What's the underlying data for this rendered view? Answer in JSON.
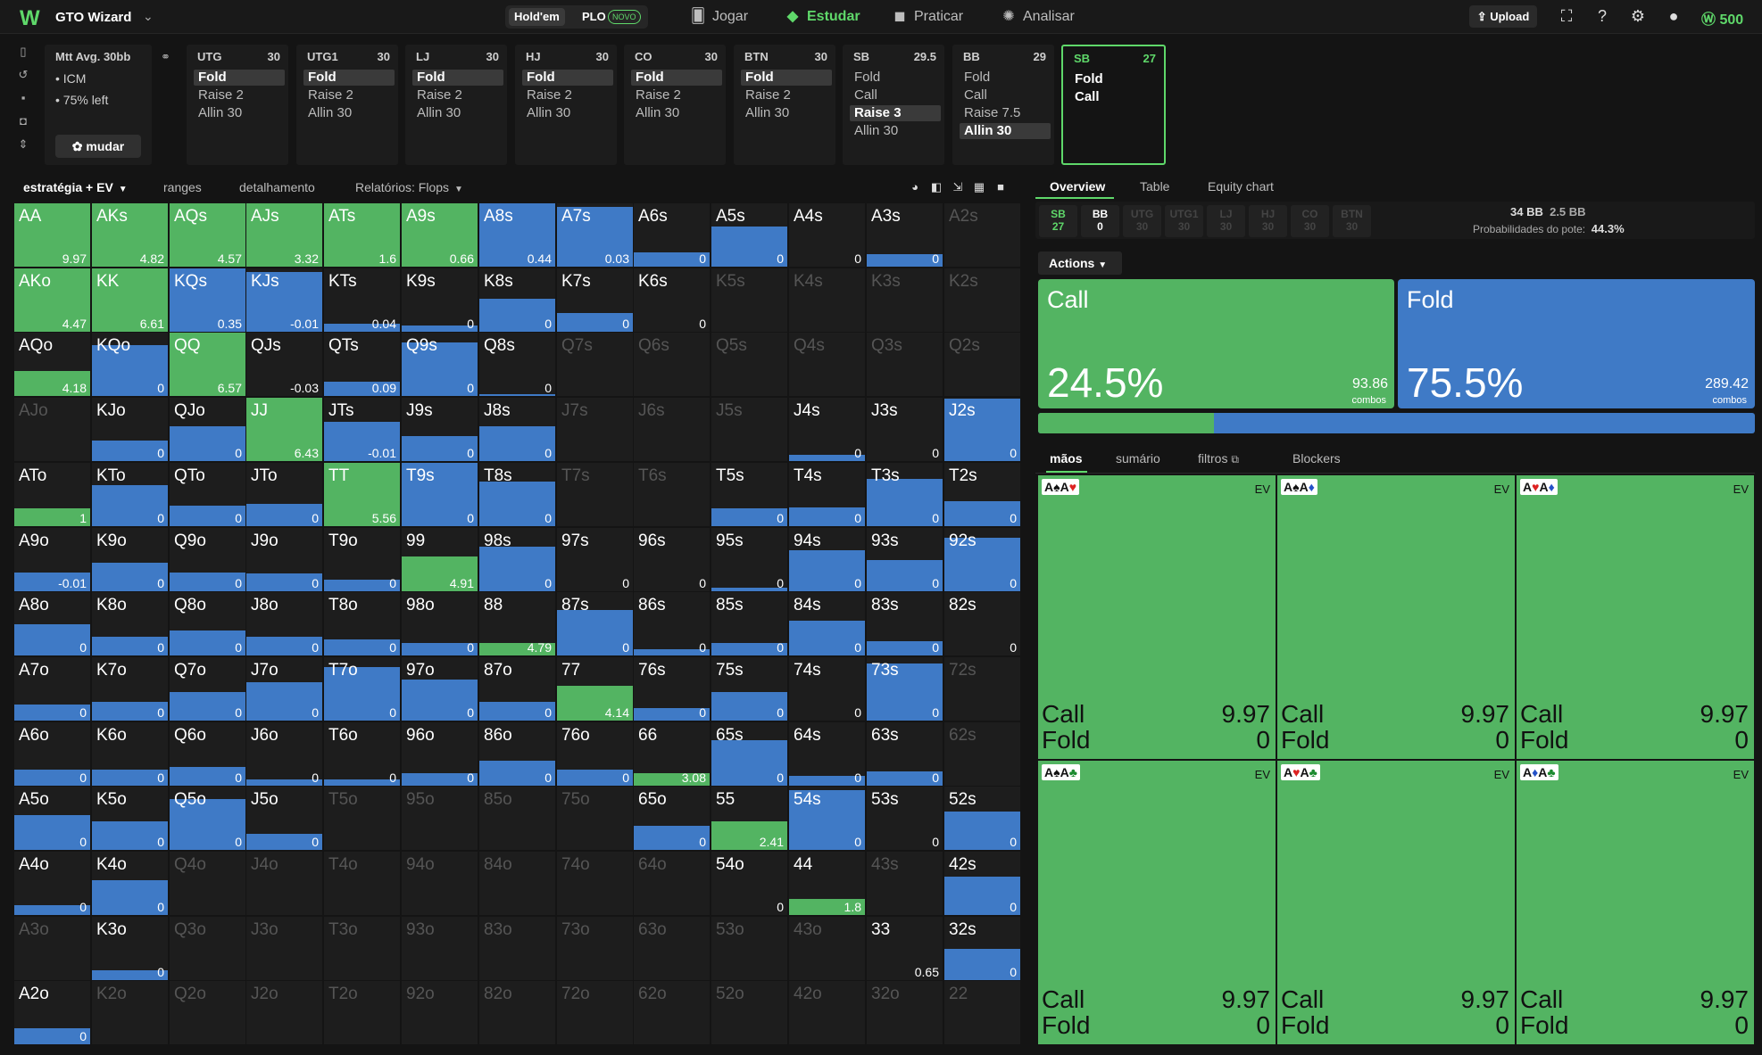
{
  "app": {
    "logo": "W",
    "name": "GTO Wizard",
    "mode_holdem": "Hold'em",
    "mode_plo": "PLO",
    "new_badge": "NOVO"
  },
  "nav": [
    {
      "label": "Jogar",
      "icon": "cards-icon"
    },
    {
      "label": "Estudar",
      "icon": "graduation-cap-icon"
    },
    {
      "label": "Praticar",
      "icon": "gamepad-icon"
    },
    {
      "label": "Analisar",
      "icon": "lightbulb-icon"
    }
  ],
  "header": {
    "upload": "Upload",
    "coins": "500"
  },
  "spot": {
    "title": "Mtt",
    "avg": "Avg. 30bb",
    "line1": "• ICM",
    "line2": "• 75% left",
    "change": "mudar"
  },
  "positions": [
    {
      "name": "UTG",
      "stack": "30",
      "actions": [
        "Fold",
        "Raise 2",
        "Allin 30"
      ],
      "selected": 0
    },
    {
      "name": "UTG1",
      "stack": "30",
      "actions": [
        "Fold",
        "Raise 2",
        "Allin 30"
      ],
      "selected": 0
    },
    {
      "name": "LJ",
      "stack": "30",
      "actions": [
        "Fold",
        "Raise 2",
        "Allin 30"
      ],
      "selected": 0
    },
    {
      "name": "HJ",
      "stack": "30",
      "actions": [
        "Fold",
        "Raise 2",
        "Allin 30"
      ],
      "selected": 0
    },
    {
      "name": "CO",
      "stack": "30",
      "actions": [
        "Fold",
        "Raise 2",
        "Allin 30"
      ],
      "selected": 0
    },
    {
      "name": "BTN",
      "stack": "30",
      "actions": [
        "Fold",
        "Raise 2",
        "Allin 30"
      ],
      "selected": 0
    },
    {
      "name": "SB",
      "stack": "29.5",
      "actions": [
        "Fold",
        "Call",
        "Raise 3",
        "Allin 30"
      ],
      "selected": 2
    },
    {
      "name": "BB",
      "stack": "29",
      "actions": [
        "Fold",
        "Call",
        "Raise 7.5",
        "Allin 30"
      ],
      "selected": 3
    },
    {
      "name": "SB",
      "stack": "27",
      "actions": [
        "Fold",
        "Call"
      ],
      "selected": -1,
      "current": true
    }
  ],
  "grid_tabs": [
    "estratégia + EV",
    "ranges",
    "detalhamento",
    "Relatórios: Flops"
  ],
  "colors": {
    "call": "#53b462",
    "fold": "#3f7ac6",
    "accent": "#5fd86a"
  },
  "grid": [
    [
      [
        "AA",
        1,
        "9.97"
      ],
      [
        "AKs",
        1,
        "4.82"
      ],
      [
        "AQs",
        1,
        "4.57"
      ],
      [
        "AJs",
        1,
        "3.32"
      ],
      [
        "ATs",
        1,
        "1.6"
      ],
      [
        "A9s",
        1,
        "0.66"
      ],
      [
        "A8s",
        1,
        "0.44"
      ],
      [
        "A7s",
        0.95,
        "0.03"
      ],
      [
        "A6s",
        0.22,
        "0"
      ],
      [
        "A5s",
        0.63,
        "0"
      ],
      [
        "A4s",
        0,
        "0"
      ],
      [
        "A3s",
        0.2,
        "0"
      ],
      [
        "A2s",
        null,
        ""
      ]
    ],
    [
      [
        "AKo",
        1,
        "4.47"
      ],
      [
        "KK",
        1,
        "6.61"
      ],
      [
        "KQs",
        1,
        "0.35"
      ],
      [
        "KJs",
        0.95,
        "-0.01"
      ],
      [
        "KTs",
        0.13,
        "0.04"
      ],
      [
        "K9s",
        0.1,
        "0"
      ],
      [
        "K8s",
        0.52,
        "0"
      ],
      [
        "K7s",
        0.3,
        "0"
      ],
      [
        "K6s",
        0,
        "0"
      ],
      [
        "K5s",
        null,
        ""
      ],
      [
        "K4s",
        null,
        ""
      ],
      [
        "K3s",
        null,
        ""
      ],
      [
        "K2s",
        null,
        ""
      ]
    ],
    [
      [
        "AQo",
        0.4,
        "4.18"
      ],
      [
        "KQo",
        0.8,
        "0"
      ],
      [
        "QQ",
        1,
        "6.57"
      ],
      [
        "QJs",
        0,
        "-0.03"
      ],
      [
        "QTs",
        0.22,
        "0.09"
      ],
      [
        "Q9s",
        0.85,
        "0"
      ],
      [
        "Q8s",
        0.03,
        "0"
      ],
      [
        "Q7s",
        null,
        ""
      ],
      [
        "Q6s",
        null,
        ""
      ],
      [
        "Q5s",
        null,
        ""
      ],
      [
        "Q4s",
        null,
        ""
      ],
      [
        "Q3s",
        null,
        ""
      ],
      [
        "Q2s",
        null,
        ""
      ]
    ],
    [
      [
        "AJo",
        null,
        ""
      ],
      [
        "KJo",
        0.32,
        "0"
      ],
      [
        "QJo",
        0.55,
        "0"
      ],
      [
        "JJ",
        1,
        "6.43"
      ],
      [
        "JTs",
        0.62,
        "-0.01"
      ],
      [
        "J9s",
        0.4,
        "0"
      ],
      [
        "J8s",
        0.55,
        "0"
      ],
      [
        "J7s",
        null,
        ""
      ],
      [
        "J6s",
        null,
        ""
      ],
      [
        "J5s",
        null,
        ""
      ],
      [
        "J4s",
        0.1,
        "0"
      ],
      [
        "J3s",
        0,
        "0"
      ],
      [
        "J2s",
        0.98,
        "0"
      ]
    ],
    [
      [
        "ATo",
        0.28,
        "1"
      ],
      [
        "KTo",
        0.65,
        "0"
      ],
      [
        "QTo",
        0.32,
        "0"
      ],
      [
        "JTo",
        0.35,
        "0"
      ],
      [
        "TT",
        1,
        "5.56"
      ],
      [
        "T9s",
        1,
        "0"
      ],
      [
        "T8s",
        0.7,
        "0"
      ],
      [
        "T7s",
        null,
        ""
      ],
      [
        "T6s",
        null,
        ""
      ],
      [
        "T5s",
        0.28,
        "0"
      ],
      [
        "T4s",
        0.3,
        "0"
      ],
      [
        "T3s",
        0.75,
        "0"
      ],
      [
        "T2s",
        0.4,
        "0"
      ]
    ],
    [
      [
        "A9o",
        0.3,
        "-0.01"
      ],
      [
        "K9o",
        0.45,
        "0"
      ],
      [
        "Q9o",
        0.3,
        "0"
      ],
      [
        "J9o",
        0.28,
        "0"
      ],
      [
        "T9o",
        0.18,
        "0"
      ],
      [
        "99",
        0.55,
        "4.91"
      ],
      [
        "98s",
        0.7,
        "0"
      ],
      [
        "97s",
        0,
        "0"
      ],
      [
        "96s",
        0,
        "0"
      ],
      [
        "95s",
        0.05,
        "0"
      ],
      [
        "94s",
        0.65,
        "0"
      ],
      [
        "93s",
        0.5,
        "0"
      ],
      [
        "92s",
        0.85,
        "0"
      ]
    ],
    [
      [
        "A8o",
        0.5,
        "0"
      ],
      [
        "K8o",
        0.3,
        "0"
      ],
      [
        "Q8o",
        0.4,
        "0"
      ],
      [
        "J8o",
        0.3,
        "0"
      ],
      [
        "T8o",
        0.25,
        "0"
      ],
      [
        "98o",
        0.2,
        "0"
      ],
      [
        "88",
        0.2,
        "4.79"
      ],
      [
        "87s",
        0.72,
        "0"
      ],
      [
        "86s",
        0.1,
        "0"
      ],
      [
        "85s",
        0.2,
        "0"
      ],
      [
        "84s",
        0.55,
        "0"
      ],
      [
        "83s",
        0.22,
        "0"
      ],
      [
        "82s",
        0,
        "0"
      ]
    ],
    [
      [
        "A7o",
        0.25,
        "0"
      ],
      [
        "K7o",
        0.3,
        "0"
      ],
      [
        "Q7o",
        0.45,
        "0"
      ],
      [
        "J7o",
        0.6,
        "0"
      ],
      [
        "T7o",
        0.85,
        "0"
      ],
      [
        "97o",
        0.65,
        "0"
      ],
      [
        "87o",
        0.3,
        "0"
      ],
      [
        "77",
        0.55,
        "4.14"
      ],
      [
        "76s",
        0.2,
        "0"
      ],
      [
        "75s",
        0.45,
        "0"
      ],
      [
        "74s",
        0,
        "0"
      ],
      [
        "73s",
        0.9,
        "0"
      ],
      [
        "72s",
        null,
        ""
      ]
    ],
    [
      [
        "A6o",
        0.25,
        "0"
      ],
      [
        "K6o",
        0.25,
        "0"
      ],
      [
        "Q6o",
        0.3,
        "0"
      ],
      [
        "J6o",
        0.1,
        "0"
      ],
      [
        "T6o",
        0.1,
        "0"
      ],
      [
        "96o",
        0.2,
        "0"
      ],
      [
        "86o",
        0.4,
        "0"
      ],
      [
        "76o",
        0.25,
        "0"
      ],
      [
        "66",
        0.2,
        "3.08"
      ],
      [
        "65s",
        0.72,
        "0"
      ],
      [
        "64s",
        0.15,
        "0"
      ],
      [
        "63s",
        0.22,
        "0"
      ],
      [
        "62s",
        null,
        ""
      ]
    ],
    [
      [
        "A5o",
        0.55,
        "0"
      ],
      [
        "K5o",
        0.45,
        "0"
      ],
      [
        "Q5o",
        0.8,
        "0"
      ],
      [
        "J5o",
        0.25,
        "0"
      ],
      [
        "T5o",
        null,
        ""
      ],
      [
        "95o",
        null,
        ""
      ],
      [
        "85o",
        null,
        ""
      ],
      [
        "75o",
        null,
        ""
      ],
      [
        "65o",
        0.38,
        "0"
      ],
      [
        "55",
        0.45,
        "2.41"
      ],
      [
        "54s",
        0.95,
        "0"
      ],
      [
        "53s",
        0,
        "0"
      ],
      [
        "52s",
        0.6,
        "0"
      ]
    ],
    [
      [
        "A4o",
        0.15,
        "0"
      ],
      [
        "K4o",
        0.55,
        "0"
      ],
      [
        "Q4o",
        null,
        ""
      ],
      [
        "J4o",
        null,
        ""
      ],
      [
        "T4o",
        null,
        ""
      ],
      [
        "94o",
        null,
        ""
      ],
      [
        "84o",
        null,
        ""
      ],
      [
        "74o",
        null,
        ""
      ],
      [
        "64o",
        null,
        ""
      ],
      [
        "54o",
        0,
        "0"
      ],
      [
        "44",
        0.25,
        "1.8"
      ],
      [
        "43s",
        null,
        ""
      ],
      [
        "42s",
        0.6,
        "0"
      ]
    ],
    [
      [
        "A3o",
        null,
        ""
      ],
      [
        "K3o",
        0.15,
        "0"
      ],
      [
        "Q3o",
        null,
        ""
      ],
      [
        "J3o",
        null,
        ""
      ],
      [
        "T3o",
        null,
        ""
      ],
      [
        "93o",
        null,
        ""
      ],
      [
        "83o",
        null,
        ""
      ],
      [
        "73o",
        null,
        ""
      ],
      [
        "63o",
        null,
        ""
      ],
      [
        "53o",
        null,
        ""
      ],
      [
        "43o",
        null,
        ""
      ],
      [
        "33",
        0,
        "0.65"
      ],
      [
        "32s",
        0.5,
        "0"
      ]
    ],
    [
      [
        "A2o",
        0.25,
        "0"
      ],
      [
        "K2o",
        null,
        ""
      ],
      [
        "Q2o",
        null,
        ""
      ],
      [
        "J2o",
        null,
        ""
      ],
      [
        "T2o",
        null,
        ""
      ],
      [
        "92o",
        null,
        ""
      ],
      [
        "82o",
        null,
        ""
      ],
      [
        "72o",
        null,
        ""
      ],
      [
        "62o",
        null,
        ""
      ],
      [
        "52o",
        null,
        ""
      ],
      [
        "42o",
        null,
        ""
      ],
      [
        "32o",
        null,
        ""
      ],
      [
        "22",
        null,
        ""
      ]
    ]
  ],
  "right_tabs": [
    "Overview",
    "Table",
    "Equity chart"
  ],
  "stacks": [
    {
      "n": "SB",
      "v": "27",
      "state": "hero"
    },
    {
      "n": "BB",
      "v": "0",
      "state": "on"
    },
    {
      "n": "UTG",
      "v": "30",
      "state": "off"
    },
    {
      "n": "UTG1",
      "v": "30",
      "state": "off"
    },
    {
      "n": "LJ",
      "v": "30",
      "state": "off"
    },
    {
      "n": "HJ",
      "v": "30",
      "state": "off"
    },
    {
      "n": "CO",
      "v": "30",
      "state": "off"
    },
    {
      "n": "BTN",
      "v": "30",
      "state": "off"
    }
  ],
  "pot": {
    "bb": "34 BB",
    "extra": "2.5 BB",
    "label": "Probabilidades do pote:",
    "odds": "44.3%"
  },
  "actions_label": "Actions",
  "summary": [
    {
      "name": "Call",
      "pct": "24.5%",
      "combos": "93.86",
      "combos_label": "combos",
      "freq": 0.245
    },
    {
      "name": "Fold",
      "pct": "75.5%",
      "combos": "289.42",
      "combos_label": "combos",
      "freq": 0.755
    }
  ],
  "hand_tabs": [
    "mãos",
    "sumário",
    "filtros",
    "Blockers"
  ],
  "combos": [
    {
      "cards": [
        [
          "A",
          "♠",
          "k"
        ],
        [
          "A",
          "♥",
          "r"
        ]
      ],
      "ev": "EV",
      "call": "9.97",
      "fold": "0"
    },
    {
      "cards": [
        [
          "A",
          "♠",
          "k"
        ],
        [
          "A",
          "♦",
          "b"
        ]
      ],
      "ev": "EV",
      "call": "9.97",
      "fold": "0"
    },
    {
      "cards": [
        [
          "A",
          "♥",
          "r"
        ],
        [
          "A",
          "♦",
          "b"
        ]
      ],
      "ev": "EV",
      "call": "9.97",
      "fold": "0"
    },
    {
      "cards": [
        [
          "A",
          "♠",
          "k"
        ],
        [
          "A",
          "♣",
          "g"
        ]
      ],
      "ev": "EV",
      "call": "9.97",
      "fold": "0"
    },
    {
      "cards": [
        [
          "A",
          "♥",
          "r"
        ],
        [
          "A",
          "♣",
          "g"
        ]
      ],
      "ev": "EV",
      "call": "9.97",
      "fold": "0"
    },
    {
      "cards": [
        [
          "A",
          "♦",
          "b"
        ],
        [
          "A",
          "♣",
          "g"
        ]
      ],
      "ev": "EV",
      "call": "9.97",
      "fold": "0"
    }
  ],
  "combo_labels": {
    "call": "Call",
    "fold": "Fold"
  }
}
